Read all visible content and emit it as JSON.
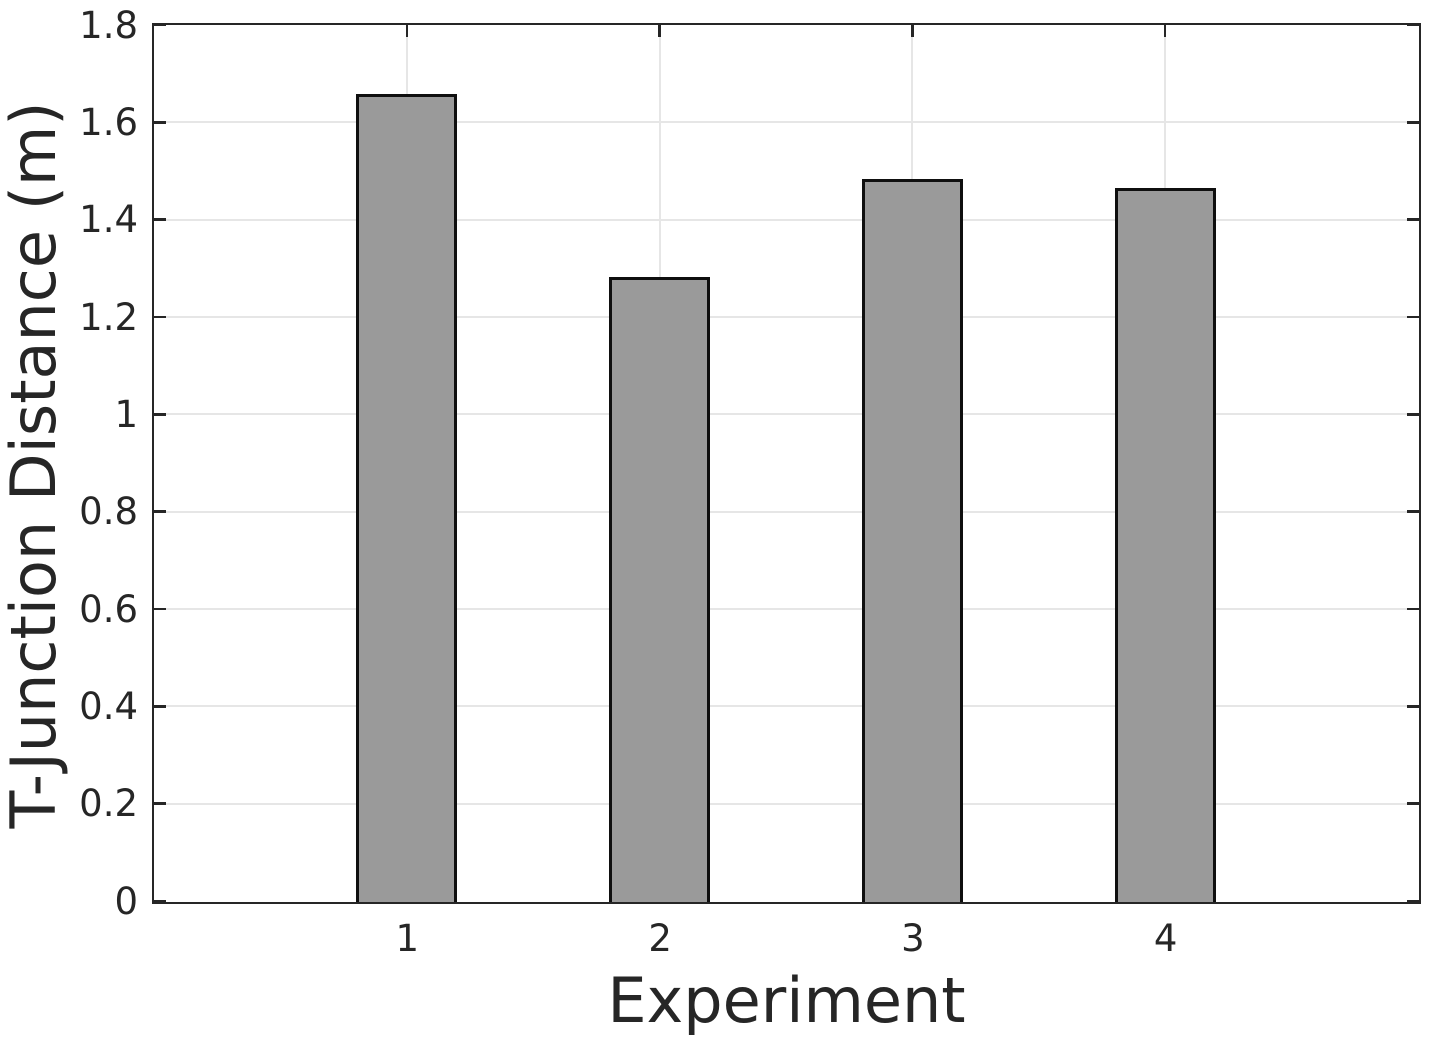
{
  "chart_data": {
    "type": "bar",
    "title": "",
    "xlabel": "Experiment",
    "ylabel": "T-Junction Distance (m)",
    "categories": [
      "1",
      "2",
      "3",
      "4"
    ],
    "values": [
      1.66,
      1.284,
      1.485,
      1.467
    ],
    "x_positions": [
      1,
      2,
      3,
      4
    ],
    "xlim": [
      0,
      5
    ],
    "ylim": [
      0,
      1.8
    ],
    "ytick_step": 0.2,
    "yticks": [
      "0",
      "0.2",
      "0.4",
      "0.6",
      "0.8",
      "1",
      "1.2",
      "1.4",
      "1.6",
      "1.8"
    ],
    "bar_width_units": 0.4,
    "grid": true,
    "legend": null,
    "colors": {
      "bar_fill": "#9a9a9a",
      "bar_edge": "#0f0f0f",
      "axis": "#262626",
      "grid": "#e6e6e6",
      "text": "#262626",
      "background": "#ffffff"
    }
  }
}
